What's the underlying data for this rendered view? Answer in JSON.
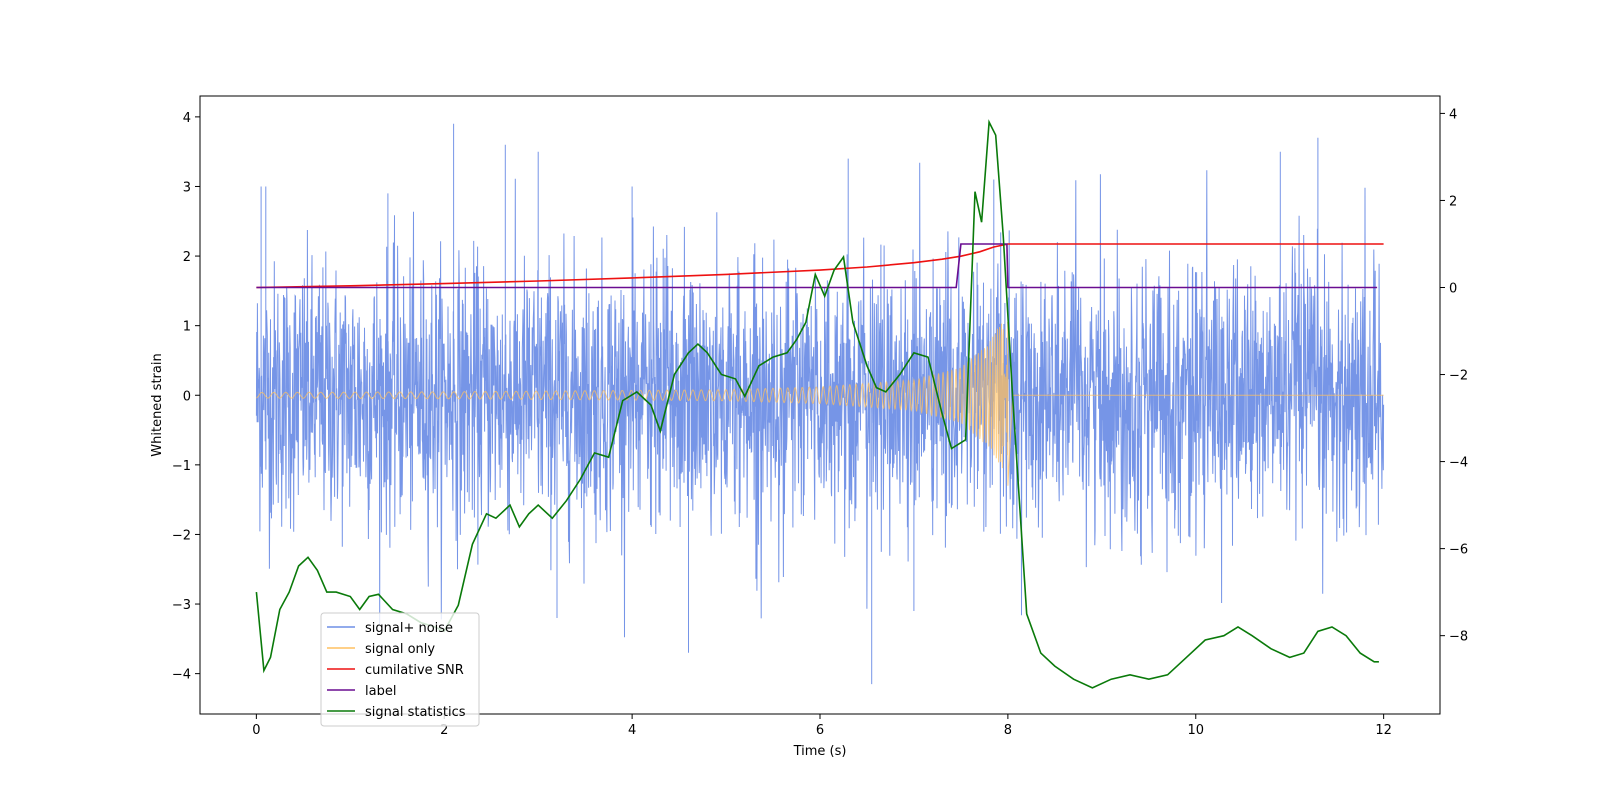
{
  "chart_data": {
    "type": "line",
    "title": "",
    "xlabel": "Time (s)",
    "ylabel": "Whitened strain",
    "y2label": "",
    "xlim": [
      -0.6,
      12.6
    ],
    "ylim": [
      -4.58,
      4.3
    ],
    "y2lim": [
      -9.8,
      4.4
    ],
    "xticks": [
      0,
      2,
      4,
      6,
      8,
      10,
      12
    ],
    "yticks": [
      -4,
      -3,
      -2,
      -1,
      0,
      1,
      2,
      3,
      4
    ],
    "y2ticks": [
      -8,
      -6,
      -4,
      -2,
      0,
      2,
      4
    ],
    "grid": false,
    "legend_position": "lower-left",
    "series": [
      {
        "name": "signal+ noise",
        "axis": "left",
        "color": "#6f8fe6",
        "kind": "noise",
        "t_start": 0,
        "t_end": 12,
        "approx_range": [
          -4.2,
          3.9
        ],
        "representative_peaks": [
          [
            0.05,
            3.0
          ],
          [
            0.1,
            3.0
          ],
          [
            1.4,
            2.9
          ],
          [
            2.1,
            3.9
          ],
          [
            2.65,
            3.6
          ],
          [
            3.0,
            3.5
          ],
          [
            4.0,
            3.0
          ],
          [
            6.55,
            -4.15
          ],
          [
            6.3,
            3.4
          ],
          [
            7.85,
            3.1
          ],
          [
            7.0,
            -3.1
          ],
          [
            10.9,
            3.5
          ],
          [
            11.3,
            3.7
          ],
          [
            4.6,
            -3.7
          ],
          [
            3.2,
            -3.2
          ]
        ]
      },
      {
        "name": "signal only",
        "axis": "left",
        "color": "#ffc060",
        "kind": "chirp",
        "t_start": 0,
        "t_merge": 8.0,
        "t_end": 12,
        "points": [
          [
            0,
            0.04
          ],
          [
            2,
            0.05
          ],
          [
            4,
            0.07
          ],
          [
            5,
            0.08
          ],
          [
            6,
            0.12
          ],
          [
            7,
            0.22
          ],
          [
            7.5,
            0.4
          ],
          [
            7.8,
            0.75
          ],
          [
            7.95,
            1.1
          ],
          [
            8.0,
            -1.3
          ],
          [
            8.05,
            0.0
          ],
          [
            12,
            0.0
          ]
        ]
      },
      {
        "name": "cumilative SNR",
        "axis": "right",
        "color": "#ee1111",
        "x": [
          0,
          1,
          2,
          3,
          4,
          5,
          6,
          6.5,
          7,
          7.3,
          7.5,
          7.7,
          7.85,
          8.0,
          8.01,
          12
        ],
        "y": [
          0.0,
          0.04,
          0.09,
          0.15,
          0.22,
          0.3,
          0.4,
          0.47,
          0.57,
          0.65,
          0.72,
          0.82,
          0.93,
          1.0,
          1.0,
          1.0
        ]
      },
      {
        "name": "label",
        "axis": "right",
        "color": "#6a0d91",
        "x": [
          0,
          7.45,
          7.5,
          7.99,
          8.0,
          11.93
        ],
        "y": [
          0,
          0,
          1,
          1,
          0,
          0
        ]
      },
      {
        "name": "signal statistics",
        "axis": "right",
        "color": "#0a7a0a",
        "x": [
          0,
          0.08,
          0.15,
          0.25,
          0.35,
          0.45,
          0.55,
          0.65,
          0.75,
          0.85,
          1.0,
          1.1,
          1.2,
          1.3,
          1.45,
          1.6,
          1.75,
          1.9,
          2.0,
          2.15,
          2.3,
          2.45,
          2.55,
          2.7,
          2.8,
          2.9,
          3.0,
          3.15,
          3.3,
          3.45,
          3.6,
          3.75,
          3.9,
          4.05,
          4.2,
          4.3,
          4.45,
          4.6,
          4.7,
          4.8,
          4.95,
          5.1,
          5.2,
          5.35,
          5.5,
          5.65,
          5.75,
          5.85,
          5.95,
          6.05,
          6.15,
          6.25,
          6.35,
          6.5,
          6.6,
          6.7,
          6.85,
          7.0,
          7.15,
          7.3,
          7.4,
          7.55,
          7.65,
          7.72,
          7.8,
          7.87,
          7.95,
          8.05,
          8.2,
          8.35,
          8.5,
          8.7,
          8.9,
          9.1,
          9.3,
          9.5,
          9.7,
          9.9,
          10.1,
          10.3,
          10.45,
          10.6,
          10.8,
          11.0,
          11.15,
          11.3,
          11.45,
          11.6,
          11.75,
          11.9,
          11.95
        ],
        "y": [
          -7.0,
          -8.8,
          -8.5,
          -7.4,
          -7.0,
          -6.4,
          -6.2,
          -6.5,
          -7.0,
          -7.0,
          -7.1,
          -7.4,
          -7.1,
          -7.05,
          -7.4,
          -7.5,
          -7.7,
          -7.8,
          -7.9,
          -7.3,
          -5.9,
          -5.2,
          -5.3,
          -5.0,
          -5.5,
          -5.2,
          -5.0,
          -5.3,
          -4.9,
          -4.4,
          -3.8,
          -3.9,
          -2.6,
          -2.4,
          -2.7,
          -3.3,
          -2.0,
          -1.5,
          -1.3,
          -1.5,
          -2.0,
          -2.1,
          -2.5,
          -1.8,
          -1.6,
          -1.5,
          -1.2,
          -0.8,
          0.3,
          -0.2,
          0.4,
          0.7,
          -0.8,
          -1.8,
          -2.3,
          -2.4,
          -2.0,
          -1.5,
          -1.6,
          -2.9,
          -3.7,
          -3.5,
          2.2,
          1.5,
          3.8,
          3.5,
          1.2,
          -2.5,
          -7.5,
          -8.4,
          -8.7,
          -9.0,
          -9.2,
          -9.0,
          -8.9,
          -9.0,
          -8.9,
          -8.5,
          -8.1,
          -8.0,
          -7.8,
          -8.0,
          -8.3,
          -8.5,
          -8.4,
          -7.9,
          -7.8,
          -8.0,
          -8.4,
          -8.6,
          -8.6
        ]
      }
    ]
  }
}
